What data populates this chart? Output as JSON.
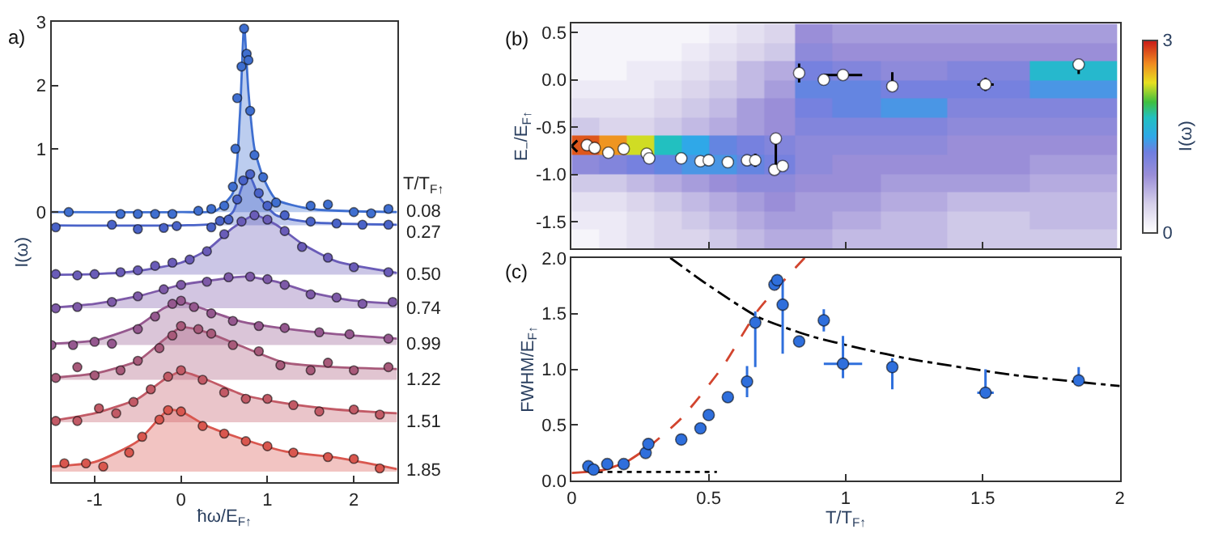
{
  "chart_data": [
    {
      "type": "scatter",
      "title": "a)",
      "xlabel": "ħω/E$_{F↑}$",
      "ylabel": "I(ω)",
      "xlim": [
        -1.5,
        2.5
      ],
      "ylim": [
        -4.27,
        3
      ],
      "xticks": [
        -1,
        0,
        1,
        2
      ],
      "yticks": [
        0,
        1,
        2,
        3
      ],
      "annotations": [
        "T/T$_{F↑}$",
        "0.08",
        "0.27",
        "0.50",
        "0.74",
        "0.99",
        "1.22",
        "1.51",
        "1.85"
      ],
      "series": [
        {
          "type": "line",
          "color": "#3f6fd0",
          "x": [
            -1.5,
            0,
            0.4,
            0.6,
            0.68,
            0.73,
            0.78,
            0.85,
            0.95,
            1.1,
            1.5,
            2.5
          ],
          "values": [
            0,
            0,
            0.02,
            0.3,
            1.5,
            2.95,
            1.9,
            1.0,
            0.55,
            0.2,
            0.05,
            0
          ],
          "lower": [
            0,
            0,
            0,
            0,
            0,
            0,
            0,
            0,
            0,
            0,
            0,
            0
          ],
          "upper": [
            0,
            0,
            0.02,
            0.3,
            1.5,
            2.95,
            1.9,
            1.0,
            0.55,
            0.2,
            0.05,
            0
          ]
        },
        {
          "type": "scatter",
          "color": "#3f6fd0",
          "x": [
            -1.3,
            -0.7,
            -0.5,
            -0.3,
            -0.1,
            0.2,
            0.35,
            0.5,
            0.6,
            0.63,
            0.65,
            0.7,
            0.73,
            0.76,
            0.78,
            0.8,
            0.85,
            0.95,
            1.1,
            1.5,
            1.7,
            2.0,
            2.2,
            2.4
          ],
          "values": [
            0,
            -0.03,
            -0.03,
            -0.03,
            -0.03,
            0.02,
            0.05,
            0.1,
            0.4,
            1.0,
            1.8,
            2.3,
            2.9,
            2.5,
            2.4,
            1.6,
            0.9,
            0.55,
            0.15,
            0.1,
            0.12,
            0.0,
            -0.02,
            0.05
          ]
        },
        {
          "type": "line",
          "color": "#4a63c8",
          "x": [
            -1.5,
            0,
            0.4,
            0.6,
            0.72,
            0.8,
            0.9,
            1.1,
            1.5,
            2.5
          ],
          "values": [
            -0.21,
            -0.21,
            -0.18,
            0.0,
            0.45,
            0.55,
            0.25,
            -0.05,
            -0.16,
            -0.2
          ],
          "lower": [
            -0.21,
            -0.21,
            -0.21,
            -0.21,
            -0.21,
            -0.21,
            -0.21,
            -0.21,
            -0.21,
            -0.21
          ],
          "upper": [
            -0.21,
            -0.21,
            -0.18,
            0.0,
            0.45,
            0.55,
            0.25,
            -0.05,
            -0.16,
            -0.2
          ]
        },
        {
          "type": "scatter",
          "color": "#4a63c8",
          "x": [
            -1.45,
            -0.8,
            -0.5,
            -0.2,
            -0.05,
            0.35,
            0.45,
            0.55,
            0.65,
            0.72,
            0.8,
            0.9,
            1.0,
            1.2,
            1.5,
            1.8,
            2.1,
            2.4
          ],
          "values": [
            -0.24,
            -0.2,
            -0.27,
            -0.25,
            -0.22,
            -0.24,
            -0.14,
            -0.12,
            0.2,
            0.5,
            0.6,
            0.3,
            0.1,
            -0.05,
            -0.15,
            -0.18,
            -0.2,
            -0.2
          ]
        },
        {
          "type": "line",
          "color": "#6a5cb8",
          "x": [
            -1.5,
            -1,
            -0.5,
            0,
            0.3,
            0.6,
            0.85,
            1.1,
            1.4,
            1.8,
            2.5
          ],
          "values": [
            -0.99,
            -0.98,
            -0.93,
            -0.8,
            -0.6,
            -0.25,
            -0.05,
            -0.2,
            -0.5,
            -0.78,
            -0.96
          ],
          "lower": [
            -0.99,
            -0.99,
            -0.99,
            -0.99,
            -0.99,
            -0.99,
            -0.99,
            -0.99,
            -0.99,
            -0.99,
            -0.99
          ],
          "upper": [
            -0.99,
            -0.98,
            -0.93,
            -0.8,
            -0.6,
            -0.25,
            -0.05,
            -0.2,
            -0.5,
            -0.78,
            -0.96
          ]
        },
        {
          "type": "scatter",
          "color": "#6a5cb8",
          "x": [
            -1.45,
            -1.2,
            -1.0,
            -0.7,
            -0.5,
            -0.3,
            -0.1,
            0.1,
            0.3,
            0.5,
            0.7,
            0.85,
            1.0,
            1.2,
            1.4,
            1.7,
            2.0,
            2.4
          ],
          "values": [
            -0.98,
            -1.0,
            -0.98,
            -0.95,
            -0.92,
            -0.85,
            -0.8,
            -0.75,
            -0.62,
            -0.35,
            -0.15,
            -0.05,
            -0.12,
            -0.3,
            -0.55,
            -0.72,
            -0.87,
            -0.95
          ]
        },
        {
          "type": "line",
          "color": "#7e5aa8",
          "x": [
            -1.5,
            -1,
            -0.5,
            0,
            0.4,
            0.75,
            1.1,
            1.5,
            2,
            2.5
          ],
          "values": [
            -1.51,
            -1.45,
            -1.33,
            -1.15,
            -1.07,
            -1.02,
            -1.1,
            -1.27,
            -1.4,
            -1.45
          ],
          "lower": [
            -1.52,
            -1.52,
            -1.52,
            -1.52,
            -1.52,
            -1.52,
            -1.52,
            -1.52,
            -1.52,
            -1.52
          ],
          "upper": [
            -1.51,
            -1.45,
            -1.33,
            -1.15,
            -1.07,
            -1.02,
            -1.1,
            -1.27,
            -1.4,
            -1.45
          ]
        },
        {
          "type": "scatter",
          "color": "#7e5aa8",
          "x": [
            -1.45,
            -1.2,
            -0.8,
            -0.5,
            -0.2,
            0,
            0.3,
            0.55,
            0.8,
            1.0,
            1.2,
            1.5,
            1.8,
            2.1,
            2.45
          ],
          "values": [
            -1.52,
            -1.5,
            -1.42,
            -1.33,
            -1.22,
            -1.15,
            -1.1,
            -1.03,
            -1.02,
            -1.06,
            -1.15,
            -1.3,
            -1.35,
            -1.45,
            -1.42
          ]
        },
        {
          "type": "line",
          "color": "#95588f",
          "x": [
            -1.5,
            -1,
            -0.5,
            -0.2,
            0,
            0.3,
            0.7,
            1.2,
            1.8,
            2.5
          ],
          "values": [
            -2.08,
            -2.03,
            -1.8,
            -1.52,
            -1.42,
            -1.55,
            -1.73,
            -1.84,
            -1.93,
            -2.0
          ],
          "lower": [
            -2.1,
            -2.1,
            -2.1,
            -2.1,
            -2.1,
            -2.1,
            -2.1,
            -2.1,
            -2.1,
            -2.1
          ],
          "upper": [
            -2.08,
            -2.03,
            -1.8,
            -1.52,
            -1.42,
            -1.55,
            -1.73,
            -1.84,
            -1.93,
            -2.0
          ]
        },
        {
          "type": "scatter",
          "color": "#95588f",
          "x": [
            -1.5,
            -1.25,
            -1.0,
            -0.8,
            -0.5,
            -0.3,
            -0.1,
            0,
            0.15,
            0.35,
            0.6,
            0.9,
            1.2,
            1.6,
            1.95,
            2.4
          ],
          "values": [
            -2.1,
            -2.1,
            -2.05,
            -2.08,
            -1.85,
            -1.65,
            -1.45,
            -1.4,
            -1.5,
            -1.6,
            -1.72,
            -1.8,
            -1.83,
            -1.9,
            -1.93,
            -2.0
          ]
        },
        {
          "type": "line",
          "color": "#a85a7a",
          "x": [
            -1.5,
            -1,
            -0.5,
            -0.2,
            0,
            0.3,
            0.7,
            1.2,
            1.8,
            2.5
          ],
          "values": [
            -2.62,
            -2.55,
            -2.35,
            -2.02,
            -1.82,
            -1.9,
            -2.12,
            -2.38,
            -2.45,
            -2.48
          ],
          "lower": [
            -2.65,
            -2.65,
            -2.65,
            -2.65,
            -2.65,
            -2.65,
            -2.65,
            -2.65,
            -2.65,
            -2.65
          ],
          "upper": [
            -2.62,
            -2.55,
            -2.35,
            -2.02,
            -1.82,
            -1.9,
            -2.12,
            -2.38,
            -2.45,
            -2.48
          ]
        },
        {
          "type": "scatter",
          "color": "#a85a7a",
          "x": [
            -1.45,
            -1.2,
            -1.0,
            -0.7,
            -0.5,
            -0.25,
            -0.1,
            0,
            0.2,
            0.35,
            0.6,
            0.9,
            1.15,
            1.5,
            1.7,
            2.0,
            2.4
          ],
          "values": [
            -2.62,
            -2.45,
            -2.58,
            -2.5,
            -2.35,
            -2.15,
            -1.95,
            -1.8,
            -1.85,
            -1.92,
            -2.1,
            -2.2,
            -2.42,
            -2.5,
            -2.38,
            -2.5,
            -2.45
          ]
        },
        {
          "type": "line",
          "color": "#c25a66",
          "x": [
            -1.5,
            -1,
            -0.5,
            -0.2,
            0,
            0.3,
            0.7,
            1.2,
            1.8,
            2.5
          ],
          "values": [
            -3.3,
            -3.18,
            -2.95,
            -2.65,
            -2.52,
            -2.65,
            -2.88,
            -3.02,
            -3.12,
            -3.18
          ],
          "lower": [
            -3.32,
            -3.32,
            -3.32,
            -3.32,
            -3.32,
            -3.32,
            -3.32,
            -3.32,
            -3.32,
            -3.32
          ],
          "upper": [
            -3.3,
            -3.18,
            -2.95,
            -2.65,
            -2.52,
            -2.65,
            -2.88,
            -3.02,
            -3.12,
            -3.18
          ]
        },
        {
          "type": "scatter",
          "color": "#c25a66",
          "x": [
            -1.45,
            -1.2,
            -0.95,
            -0.75,
            -0.55,
            -0.35,
            -0.15,
            0,
            0.25,
            0.5,
            0.75,
            1.0,
            1.3,
            1.6,
            2.0,
            2.3
          ],
          "values": [
            -3.3,
            -3.3,
            -3.1,
            -3.18,
            -3.0,
            -2.8,
            -2.6,
            -2.5,
            -2.65,
            -2.85,
            -2.95,
            -2.95,
            -3.05,
            -3.15,
            -3.12,
            -3.2
          ]
        },
        {
          "type": "line",
          "color": "#d9574f",
          "x": [
            -1.5,
            -1,
            -0.5,
            -0.15,
            0,
            0.3,
            0.7,
            1.2,
            1.8,
            2.5
          ],
          "values": [
            -4.02,
            -3.95,
            -3.62,
            -3.13,
            -3.15,
            -3.38,
            -3.58,
            -3.78,
            -3.88,
            -4.06
          ],
          "lower": [
            -4.1,
            -4.1,
            -4.1,
            -4.1,
            -4.1,
            -4.1,
            -4.1,
            -4.1,
            -4.1,
            -4.1
          ],
          "upper": [
            -4.02,
            -3.95,
            -3.62,
            -3.13,
            -3.15,
            -3.38,
            -3.58,
            -3.78,
            -3.88,
            -4.06
          ]
        },
        {
          "type": "scatter",
          "color": "#d9574f",
          "x": [
            -1.35,
            -1.1,
            -0.9,
            -0.6,
            -0.45,
            -0.25,
            -0.15,
            0,
            0.25,
            0.5,
            0.75,
            1.0,
            1.3,
            1.7,
            2.0,
            2.3
          ],
          "values": [
            -3.97,
            -3.97,
            -4.02,
            -3.8,
            -3.55,
            -3.28,
            -3.13,
            -3.15,
            -3.38,
            -3.5,
            -3.62,
            -3.7,
            -3.8,
            -3.87,
            -3.9,
            -4.05
          ]
        }
      ]
    },
    {
      "type": "heatmap",
      "title": "(b)",
      "ylabel": "E$_{−}$/E$_{F↑}$",
      "clabel": "I(ω)",
      "clim": [
        0,
        3
      ],
      "cticks": [
        0,
        3
      ],
      "xlim": [
        0,
        2
      ],
      "ylim": [
        -1.78,
        0.59
      ],
      "xticks": [
        0,
        0.5,
        1,
        1.5,
        2
      ],
      "yticks": [
        {
          "value": 0.5,
          "label": "0.5"
        },
        {
          "value": 0,
          "label": "0.0"
        },
        {
          "value": -0.5,
          "label": "-0.5"
        },
        {
          "value": -1,
          "label": "-1.0"
        },
        {
          "value": -1.5,
          "label": "-1.5"
        }
      ],
      "tick_labels": "y",
      "x": [
        0.05,
        0.15,
        0.25,
        0.35,
        0.45,
        0.55,
        0.65,
        0.75,
        0.875,
        1.025,
        1.23,
        1.51,
        1.83
      ],
      "cells": [
        [
          0.1,
          0.1,
          0.1,
          0.1,
          0.1,
          0.2,
          0.3,
          0.4,
          0.9,
          0.8,
          0.8,
          0.8,
          0.8
        ],
        [
          0.1,
          0.1,
          0.1,
          0.1,
          0.2,
          0.3,
          0.4,
          0.5,
          1.0,
          0.9,
          0.9,
          0.9,
          0.9
        ],
        [
          0.1,
          0.1,
          0.2,
          0.2,
          0.3,
          0.4,
          0.6,
          0.7,
          1.2,
          1.1,
          1.0,
          1.1,
          1.7
        ],
        [
          0.2,
          0.2,
          0.2,
          0.3,
          0.4,
          0.5,
          0.6,
          0.8,
          1.3,
          1.3,
          1.2,
          1.2,
          1.4
        ],
        [
          0.3,
          0.3,
          0.3,
          0.4,
          0.5,
          0.6,
          0.8,
          0.9,
          1.2,
          1.3,
          1.4,
          1.1,
          1.1
        ],
        [
          0.5,
          0.4,
          0.4,
          0.5,
          0.6,
          0.7,
          0.8,
          0.9,
          1.1,
          1.1,
          1.1,
          1.0,
          1.0
        ],
        [
          2.8,
          2.6,
          2.3,
          1.8,
          1.5,
          1.3,
          1.2,
          1.1,
          1.0,
          1.0,
          1.0,
          0.9,
          0.9
        ],
        [
          1.0,
          1.1,
          1.2,
          1.3,
          1.4,
          1.4,
          1.3,
          1.2,
          1.0,
          0.9,
          0.9,
          0.9,
          0.8
        ],
        [
          0.5,
          0.5,
          0.6,
          0.7,
          0.8,
          0.9,
          1.0,
          1.0,
          0.9,
          0.9,
          0.8,
          0.8,
          0.7
        ],
        [
          0.3,
          0.3,
          0.4,
          0.5,
          0.6,
          0.7,
          0.8,
          0.9,
          0.8,
          0.8,
          0.7,
          0.6,
          0.6
        ],
        [
          0.2,
          0.2,
          0.3,
          0.4,
          0.5,
          0.6,
          0.7,
          0.8,
          0.8,
          0.7,
          0.6,
          0.5,
          0.6
        ],
        [
          0.1,
          0.2,
          0.3,
          0.4,
          0.4,
          0.5,
          0.6,
          0.7,
          0.7,
          0.6,
          0.6,
          0.5,
          0.5
        ]
      ],
      "series": [
        {
          "type": "scatter",
          "marker": "cross",
          "color": "#000000",
          "x": [
            0.0
          ],
          "values": [
            -0.7
          ]
        },
        {
          "type": "scatter",
          "marker": "circle",
          "color": "#ffffff",
          "x": [
            0.056,
            0.084,
            0.134,
            0.19,
            0.274,
            0.283,
            0.4,
            0.47,
            0.5,
            0.57,
            0.64,
            0.67,
            0.74,
            0.745,
            0.77,
            0.83,
            0.92,
            0.99,
            1.17,
            1.51,
            1.85
          ],
          "values": [
            -0.69,
            -0.72,
            -0.77,
            -0.73,
            -0.78,
            -0.83,
            -0.83,
            -0.86,
            -0.85,
            -0.87,
            -0.85,
            -0.85,
            -0.95,
            -0.62,
            -0.91,
            0.07,
            0.0,
            0.05,
            -0.07,
            -0.05,
            0.16
          ],
          "errors": [
            null,
            null,
            null,
            null,
            null,
            null,
            null,
            null,
            null,
            null,
            null,
            0.07,
            null,
            [
              -0.93,
              -0.62
            ],
            null,
            0.1,
            null,
            null,
            [
              -0.07,
              0.08
            ],
            0.07,
            [
              0.06,
              0.16
            ]
          ],
          "xerrors": [
            null,
            null,
            null,
            null,
            null,
            null,
            null,
            null,
            null,
            null,
            null,
            null,
            null,
            null,
            null,
            null,
            null,
            0.07,
            null,
            0.03,
            null
          ]
        }
      ]
    },
    {
      "type": "scatter",
      "title": "(c)",
      "xlabel": "T/T$_{F↑}$",
      "ylabel": "FWHM/E$_{F↑}$",
      "xlim": [
        0,
        2
      ],
      "ylim": [
        0,
        2
      ],
      "xticks": [
        0,
        0.5,
        1,
        1.5,
        2
      ],
      "yticks": [
        {
          "value": 0,
          "label": "0.0"
        },
        {
          "value": 0.5,
          "label": "0.5"
        },
        {
          "value": 1,
          "label": "1.0"
        },
        {
          "value": 1.5,
          "label": "1.5"
        },
        {
          "value": 2,
          "label": "2.0"
        }
      ],
      "series": [
        {
          "type": "line",
          "line_style": "dotted",
          "color": "#000000",
          "x": [
            0.06,
            0.53
          ],
          "values": [
            0.08,
            0.08
          ]
        },
        {
          "type": "line",
          "line_style": "solid",
          "color": "#d2452f",
          "x": [
            0,
            0.12,
            0.2,
            0.28
          ],
          "values": [
            0.07,
            0.1,
            0.17,
            0.3
          ]
        },
        {
          "type": "line",
          "line_style": "dashed",
          "color": "#d2452f",
          "x": [
            0.28,
            0.4,
            0.55,
            0.68,
            0.85
          ],
          "values": [
            0.3,
            0.56,
            1.02,
            1.53,
            2.0
          ]
        },
        {
          "type": "line",
          "line_style": "dashdot",
          "color": "#000000",
          "x": [
            0.36,
            0.49,
            0.68,
            0.87,
            1.05,
            1.24,
            1.61,
            2.0
          ],
          "values": [
            2.0,
            1.77,
            1.47,
            1.3,
            1.19,
            1.09,
            0.95,
            0.85
          ]
        },
        {
          "type": "scatter",
          "marker": "circle",
          "color": "#2f6fdc",
          "x": [
            0.061,
            0.08,
            0.13,
            0.19,
            0.27,
            0.28,
            0.4,
            0.47,
            0.5,
            0.57,
            0.64,
            0.67,
            0.74,
            0.75,
            0.77,
            0.83,
            0.92,
            0.99,
            1.17,
            1.51,
            1.85
          ],
          "values": [
            0.13,
            0.1,
            0.15,
            0.15,
            0.25,
            0.33,
            0.37,
            0.47,
            0.59,
            0.75,
            0.89,
            1.42,
            1.76,
            1.8,
            1.58,
            1.25,
            1.44,
            1.05,
            1.02,
            0.79,
            0.9
          ],
          "errors": [
            null,
            null,
            null,
            null,
            null,
            null,
            null,
            null,
            0.05,
            null,
            0.14,
            [
              1.02,
              1.52
            ],
            null,
            null,
            [
              1.14,
              1.8
            ],
            null,
            0.1,
            [
              0.92,
              1.3
            ],
            [
              0.82,
              1.1
            ],
            [
              0.79,
              1.0
            ],
            [
              0.9,
              1.02
            ]
          ],
          "xerrors": [
            null,
            null,
            null,
            null,
            null,
            null,
            null,
            null,
            null,
            null,
            null,
            null,
            null,
            null,
            null,
            null,
            null,
            0.07,
            null,
            0.03,
            null
          ]
        }
      ]
    }
  ]
}
